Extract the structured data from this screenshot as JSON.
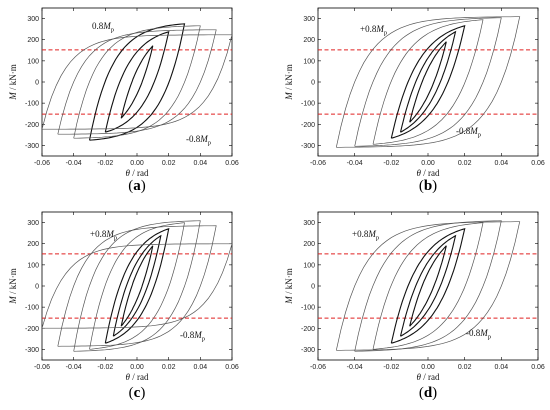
{
  "chart_data": [
    {
      "type": "line",
      "panel_label": "(a)",
      "xlabel": "θ / rad",
      "ylabel": "M / kN·m",
      "xlim": [
        -0.06,
        0.06
      ],
      "ylim": [
        -350,
        350
      ],
      "x_ticks": [
        "-0.06",
        "-0.04",
        "-0.02",
        "0.00",
        "0.02",
        "0.04",
        "0.06"
      ],
      "y_ticks": [
        "-300",
        "-200",
        "-100",
        "0",
        "100",
        "200",
        "300"
      ],
      "reference_lines": [
        {
          "value": 152,
          "label": "0.8Mp",
          "color": "#e02020"
        },
        {
          "value": -152,
          "label": "-0.8Mp",
          "color": "#e02020"
        }
      ],
      "loops": [
        {
          "amp": 0.01,
          "peak": 180
        },
        {
          "amp": 0.02,
          "peak": 250
        },
        {
          "amp": 0.03,
          "peak": 290
        },
        {
          "amp": 0.04,
          "peak": 280
        },
        {
          "amp": 0.05,
          "peak": 260
        },
        {
          "amp": 0.06,
          "peak": 235
        }
      ]
    },
    {
      "type": "line",
      "panel_label": "(b)",
      "xlabel": "θ / rad",
      "ylabel": "M / kN·m",
      "xlim": [
        -0.06,
        0.06
      ],
      "ylim": [
        -350,
        350
      ],
      "x_ticks": [
        "-0.06",
        "-0.04",
        "-0.02",
        "0.00",
        "0.02",
        "0.04",
        "0.06"
      ],
      "y_ticks": [
        "-300",
        "-200",
        "-100",
        "0",
        "100",
        "200",
        "300"
      ],
      "reference_lines": [
        {
          "value": 152,
          "label": "+0.8Mp",
          "color": "#e02020"
        },
        {
          "value": -152,
          "label": "-0.8Mp",
          "color": "#e02020"
        }
      ],
      "loops": [
        {
          "amp": 0.01,
          "peak": 200
        },
        {
          "amp": 0.015,
          "peak": 250
        },
        {
          "amp": 0.02,
          "peak": 280
        },
        {
          "amp": 0.03,
          "peak": 310
        },
        {
          "amp": 0.04,
          "peak": 320
        },
        {
          "amp": 0.05,
          "peak": 325
        }
      ]
    },
    {
      "type": "line",
      "panel_label": "(c)",
      "xlabel": "θ / rad",
      "ylabel": "M / kN·m",
      "xlim": [
        -0.06,
        0.06
      ],
      "ylim": [
        -350,
        350
      ],
      "x_ticks": [
        "-0.06",
        "-0.04",
        "-0.02",
        "0.00",
        "0.02",
        "0.04",
        "0.06"
      ],
      "y_ticks": [
        "-300",
        "-200",
        "-100",
        "0",
        "100",
        "200",
        "300"
      ],
      "reference_lines": [
        {
          "value": 152,
          "label": "+0.8Mp",
          "color": "#e02020"
        },
        {
          "value": -152,
          "label": "-0.8Mp",
          "color": "#e02020"
        }
      ],
      "loops": [
        {
          "amp": 0.01,
          "peak": 200
        },
        {
          "amp": 0.015,
          "peak": 250
        },
        {
          "amp": 0.02,
          "peak": 285
        },
        {
          "amp": 0.03,
          "peak": 315
        },
        {
          "amp": 0.04,
          "peak": 325
        },
        {
          "amp": 0.05,
          "peak": 300
        },
        {
          "amp": 0.06,
          "peak": 210
        }
      ]
    },
    {
      "type": "line",
      "panel_label": "(d)",
      "xlabel": "θ / rad",
      "ylabel": "M / kN·m",
      "xlim": [
        -0.06,
        0.06
      ],
      "ylim": [
        -350,
        350
      ],
      "x_ticks": [
        "-0.06",
        "-0.04",
        "-0.02",
        "0.00",
        "0.02",
        "0.04",
        "0.06"
      ],
      "y_ticks": [
        "-300",
        "-200",
        "-100",
        "0",
        "100",
        "200",
        "300"
      ],
      "reference_lines": [
        {
          "value": 152,
          "label": "+0.8Mp",
          "color": "#e02020"
        },
        {
          "value": -152,
          "label": "-0.8Mp",
          "color": "#e02020"
        }
      ],
      "loops": [
        {
          "amp": 0.01,
          "peak": 200
        },
        {
          "amp": 0.015,
          "peak": 250
        },
        {
          "amp": 0.02,
          "peak": 285
        },
        {
          "amp": 0.03,
          "peak": 315
        },
        {
          "amp": 0.04,
          "peak": 325
        },
        {
          "amp": 0.05,
          "peak": 320
        }
      ]
    }
  ]
}
